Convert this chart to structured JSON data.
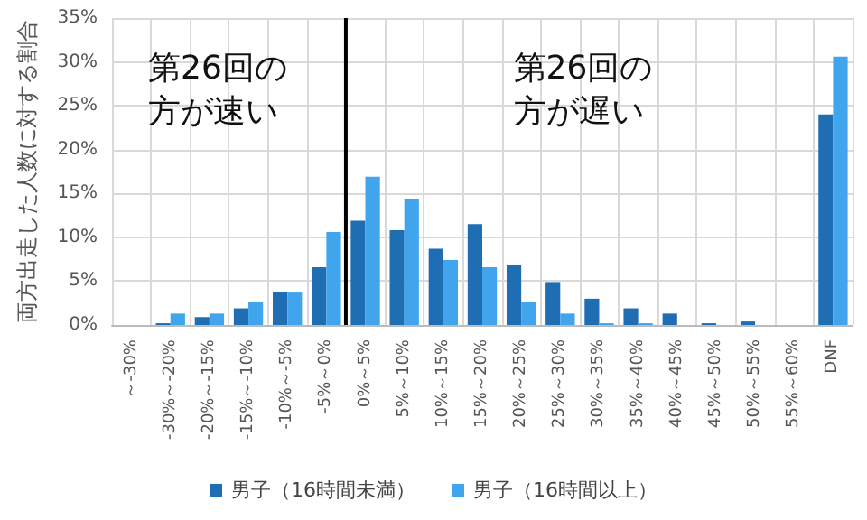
{
  "chart_data": {
    "type": "bar",
    "ylabel": "両方出走した人数に対する割合",
    "categories": [
      "～-30%",
      "-30%～-20%",
      "-20%～-15%",
      "-15%～-10%",
      "-10%～-5%",
      "-5%～0%",
      "0%～5%",
      "5%～10%",
      "10%～15%",
      "15%～20%",
      "20%～25%",
      "25%～30%",
      "30%～35%",
      "35%～40%",
      "40%～45%",
      "45%～50%",
      "50%～55%",
      "55%～60%",
      "DNF"
    ],
    "series": [
      {
        "name": "男子（16時間未満）",
        "color": "#1f6db3",
        "values": [
          0,
          0.2,
          0.9,
          1.9,
          3.8,
          6.6,
          11.9,
          10.8,
          8.7,
          11.5,
          6.9,
          4.9,
          3.0,
          1.9,
          1.3,
          0.2,
          0.4,
          0,
          24.0
        ]
      },
      {
        "name": "男子（16時間以上）",
        "color": "#41a5ee",
        "values": [
          0,
          1.3,
          1.3,
          2.6,
          3.7,
          10.6,
          16.9,
          14.4,
          7.4,
          6.6,
          2.6,
          1.3,
          0.2,
          0.2,
          0,
          0,
          0,
          0,
          30.6
        ]
      }
    ],
    "ylim": [
      0,
      35
    ],
    "yticks": [
      {
        "value": 0,
        "label": "0%"
      },
      {
        "value": 5,
        "label": "5%"
      },
      {
        "value": 10,
        "label": "10%"
      },
      {
        "value": 15,
        "label": "15%"
      },
      {
        "value": 20,
        "label": "20%"
      },
      {
        "value": 25,
        "label": "25%"
      },
      {
        "value": 30,
        "label": "30%"
      },
      {
        "value": 35,
        "label": "35%"
      }
    ],
    "grid": true,
    "legend": "bottom",
    "ref_lines": [
      {
        "axis": "x",
        "value": "0%～5%",
        "color": "#000000"
      }
    ],
    "annotations": [
      "第26回の方が速い",
      "第26回の方が遅い"
    ]
  }
}
